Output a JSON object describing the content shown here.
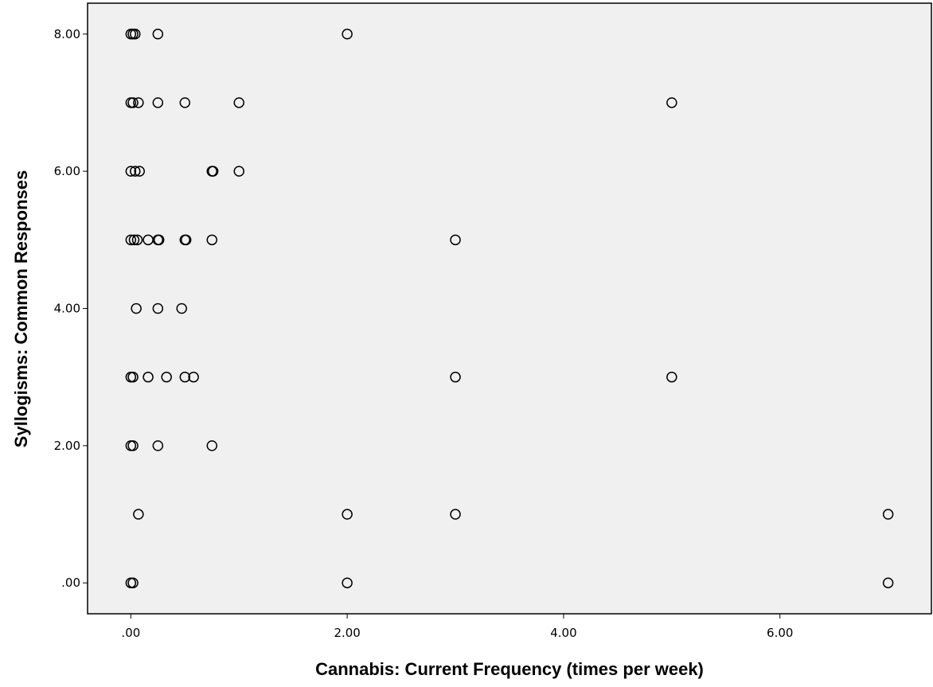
{
  "chart_data": {
    "type": "scatter",
    "title": "",
    "xlabel": "Cannabis: Current Frequency (times per week)",
    "ylabel": "Syllogisms: Common Responses",
    "xlim": [
      -0.4,
      7.4
    ],
    "ylim": [
      -0.45,
      8.45
    ],
    "x_ticks": [
      0,
      2,
      4,
      6
    ],
    "x_tick_labels": [
      ".00",
      "2.00",
      "4.00",
      "6.00"
    ],
    "y_ticks": [
      0,
      2,
      4,
      6,
      8
    ],
    "y_tick_labels": [
      ".00",
      "2.00",
      "4.00",
      "6.00",
      "8.00"
    ],
    "grid": false,
    "marker": "open-circle",
    "colors": {
      "plot_background": "#f0f0f0",
      "frame": "#000000",
      "marker": "#000000"
    },
    "points": [
      {
        "x": 0.0,
        "y": 8
      },
      {
        "x": 0.02,
        "y": 8
      },
      {
        "x": 0.04,
        "y": 8
      },
      {
        "x": 0.25,
        "y": 8
      },
      {
        "x": 2.0,
        "y": 8
      },
      {
        "x": 0.0,
        "y": 7
      },
      {
        "x": 0.02,
        "y": 7
      },
      {
        "x": 0.07,
        "y": 7
      },
      {
        "x": 0.25,
        "y": 7
      },
      {
        "x": 0.5,
        "y": 7
      },
      {
        "x": 1.0,
        "y": 7
      },
      {
        "x": 5.0,
        "y": 7
      },
      {
        "x": 0.0,
        "y": 6
      },
      {
        "x": 0.04,
        "y": 6
      },
      {
        "x": 0.08,
        "y": 6
      },
      {
        "x": 0.75,
        "y": 6
      },
      {
        "x": 0.76,
        "y": 6
      },
      {
        "x": 1.0,
        "y": 6
      },
      {
        "x": 0.0,
        "y": 5
      },
      {
        "x": 0.03,
        "y": 5
      },
      {
        "x": 0.06,
        "y": 5
      },
      {
        "x": 0.16,
        "y": 5
      },
      {
        "x": 0.25,
        "y": 5
      },
      {
        "x": 0.26,
        "y": 5
      },
      {
        "x": 0.5,
        "y": 5
      },
      {
        "x": 0.51,
        "y": 5
      },
      {
        "x": 0.75,
        "y": 5
      },
      {
        "x": 3.0,
        "y": 5
      },
      {
        "x": 0.05,
        "y": 4
      },
      {
        "x": 0.25,
        "y": 4
      },
      {
        "x": 0.47,
        "y": 4
      },
      {
        "x": 0.0,
        "y": 3
      },
      {
        "x": 0.02,
        "y": 3
      },
      {
        "x": 0.16,
        "y": 3
      },
      {
        "x": 0.33,
        "y": 3
      },
      {
        "x": 0.5,
        "y": 3
      },
      {
        "x": 0.58,
        "y": 3
      },
      {
        "x": 3.0,
        "y": 3
      },
      {
        "x": 5.0,
        "y": 3
      },
      {
        "x": 0.0,
        "y": 2
      },
      {
        "x": 0.02,
        "y": 2
      },
      {
        "x": 0.25,
        "y": 2
      },
      {
        "x": 0.75,
        "y": 2
      },
      {
        "x": 0.07,
        "y": 1
      },
      {
        "x": 2.0,
        "y": 1
      },
      {
        "x": 3.0,
        "y": 1
      },
      {
        "x": 7.0,
        "y": 1
      },
      {
        "x": 0.0,
        "y": 0
      },
      {
        "x": 0.02,
        "y": 0
      },
      {
        "x": 2.0,
        "y": 0
      },
      {
        "x": 7.0,
        "y": 0
      }
    ]
  }
}
